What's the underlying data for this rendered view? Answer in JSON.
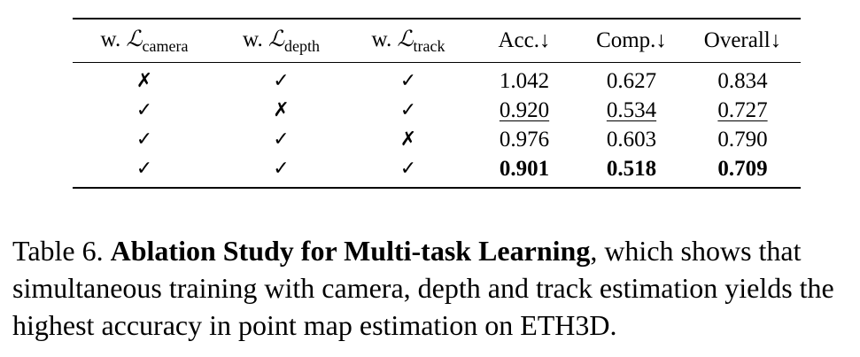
{
  "table": {
    "headers": [
      {
        "prefix": "w. ",
        "symbol": "ℒ",
        "subscript": "camera"
      },
      {
        "prefix": "w. ",
        "symbol": "ℒ",
        "subscript": "depth"
      },
      {
        "prefix": "w. ",
        "symbol": "ℒ",
        "subscript": "track"
      },
      {
        "text": "Acc.↓"
      },
      {
        "text": "Comp.↓"
      },
      {
        "text": "Overall↓"
      }
    ],
    "rows": [
      {
        "camera": "✗",
        "depth": "✓",
        "track": "✓",
        "acc": "1.042",
        "comp": "0.627",
        "overall": "0.834"
      },
      {
        "camera": "✓",
        "depth": "✗",
        "track": "✓",
        "acc": "0.920",
        "comp": "0.534",
        "overall": "0.727"
      },
      {
        "camera": "✓",
        "depth": "✓",
        "track": "✗",
        "acc": "0.976",
        "comp": "0.603",
        "overall": "0.790"
      },
      {
        "camera": "✓",
        "depth": "✓",
        "track": "✓",
        "acc": "0.901",
        "comp": "0.518",
        "overall": "0.709"
      }
    ]
  },
  "caption": {
    "label": "Table 6. ",
    "title": "Ablation Study for Multi-task Learning",
    "body": ", which shows that simultaneous training with camera, depth and track estimation yields the highest accuracy in point map estimation on ETH3D."
  }
}
